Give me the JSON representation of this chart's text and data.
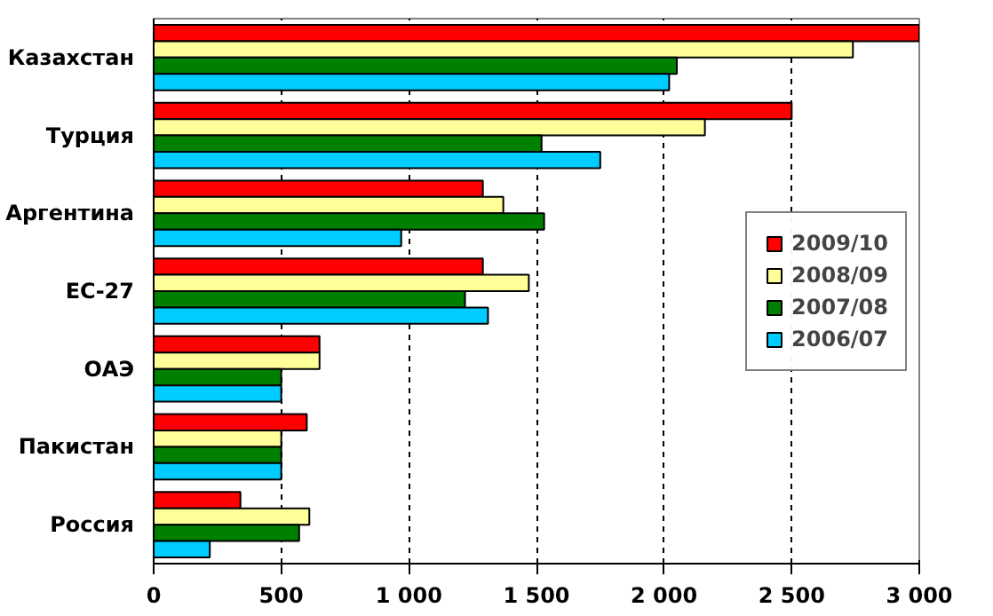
{
  "chart_data": {
    "type": "bar",
    "orientation": "horizontal",
    "categories": [
      "Казахстан",
      "Турция",
      "Аргентина",
      "ЕС-27",
      "ОАЭ",
      "Пакистан",
      "Россия"
    ],
    "series": [
      {
        "name": "2009/10",
        "color": "#ff0000",
        "values": [
          3000,
          2500,
          1290,
          1290,
          650,
          600,
          340
        ]
      },
      {
        "name": "2008/09",
        "color": "#ffff99",
        "values": [
          2740,
          2160,
          1370,
          1470,
          650,
          500,
          610
        ]
      },
      {
        "name": "2007/08",
        "color": "#008000",
        "values": [
          2050,
          1520,
          1530,
          1220,
          500,
          500,
          570
        ]
      },
      {
        "name": "2006/07",
        "color": "#00ccff",
        "values": [
          2020,
          1750,
          970,
          1310,
          500,
          500,
          220
        ]
      }
    ],
    "xlim": [
      0,
      3000
    ],
    "xticks": [
      0,
      {
        "value": 500,
        "label": "500"
      },
      {
        "value": 1000,
        "label": "1 000"
      },
      {
        "value": 1500,
        "label": "1 500"
      },
      {
        "value": 2000,
        "label": "2 000"
      },
      {
        "value": 2500,
        "label": "2 500"
      },
      {
        "value": 3000,
        "label": "3 000"
      }
    ],
    "grid": "x",
    "line_style": "dashed",
    "legend": "right"
  }
}
